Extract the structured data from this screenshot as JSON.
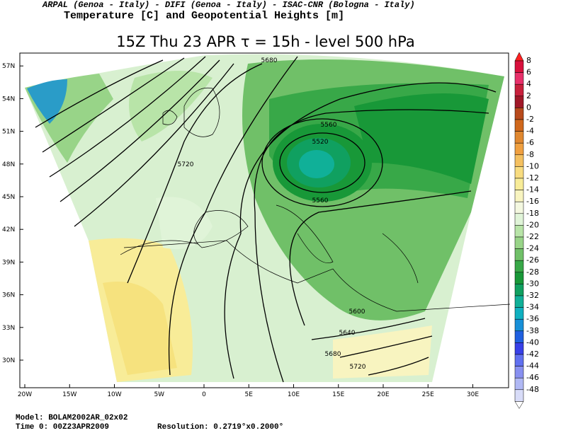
{
  "header": {
    "line1": "ARPAL (Genoa - Italy)  -  DIFI (Genoa - Italy)  -  ISAC-CNR (Bologna - Italy)",
    "line2": "Temperature [C] and Geopotential Heights [m]"
  },
  "title": "15Z Thu 23 APR   τ = 15h   -   level 500 hPa",
  "map": {
    "lon_ticks": [
      {
        "value": -20,
        "label": "20W"
      },
      {
        "value": -15,
        "label": "15W"
      },
      {
        "value": -10,
        "label": "10W"
      },
      {
        "value": -5,
        "label": "5W"
      },
      {
        "value": 0,
        "label": "0"
      },
      {
        "value": 5,
        "label": "5E"
      },
      {
        "value": 10,
        "label": "10E"
      },
      {
        "value": 15,
        "label": "15E"
      },
      {
        "value": 20,
        "label": "20E"
      },
      {
        "value": 25,
        "label": "25E"
      },
      {
        "value": 30,
        "label": "30E"
      }
    ],
    "lat_ticks": [
      {
        "value": 57,
        "label": "57N"
      },
      {
        "value": 54,
        "label": "54N"
      },
      {
        "value": 51,
        "label": "51N"
      },
      {
        "value": 48,
        "label": "48N"
      },
      {
        "value": 45,
        "label": "45N"
      },
      {
        "value": 42,
        "label": "42N"
      },
      {
        "value": 39,
        "label": "39N"
      },
      {
        "value": 36,
        "label": "36N"
      },
      {
        "value": 33,
        "label": "33N"
      },
      {
        "value": 30,
        "label": "30N"
      }
    ],
    "contour_labels": [
      5680,
      5560,
      5520,
      5720,
      5560,
      5600,
      5640,
      5680,
      5720
    ]
  },
  "colorbar": {
    "levels": [
      8,
      6,
      4,
      2,
      0,
      -2,
      -4,
      -6,
      -8,
      -10,
      -12,
      -14,
      -16,
      -18,
      -20,
      -22,
      -24,
      -26,
      -28,
      -30,
      -32,
      -34,
      -36,
      -38,
      -40,
      -42,
      -44,
      -46,
      -48
    ],
    "colors": [
      "#d8103c",
      "#e8306a",
      "#c8203c",
      "#a01828",
      "#b84a1c",
      "#d0681c",
      "#e08830",
      "#f0a040",
      "#f4c060",
      "#f8dc80",
      "#f8ec98",
      "#f8f4c0",
      "#f4f8e0",
      "#e0f4d8",
      "#b8e4a8",
      "#98d488",
      "#70c068",
      "#38a848",
      "#189838",
      "#10a060",
      "#10b098",
      "#10b0c0",
      "#1890d8",
      "#2060e0",
      "#3840e8",
      "#6070f0",
      "#8890f0",
      "#b0b8f4",
      "#d8dcf8"
    ]
  },
  "footer": {
    "model": "Model: BOLAM2002AR_02x02",
    "time": "Time 0: 00Z23APR2009",
    "resolution": "Resolution: 0.2719°x0.2000°"
  }
}
